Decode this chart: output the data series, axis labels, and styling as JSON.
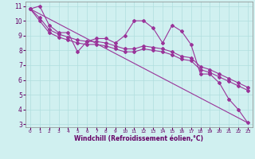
{
  "xlabel": "Windchill (Refroidissement éolien,°C)",
  "bg_color": "#d0f0f0",
  "line_color": "#993399",
  "grid_color": "#b0dede",
  "xlim": [
    -0.5,
    23.5
  ],
  "ylim": [
    2.8,
    11.3
  ],
  "yticks": [
    3,
    4,
    5,
    6,
    7,
    8,
    9,
    10,
    11
  ],
  "xticks": [
    0,
    1,
    2,
    3,
    4,
    5,
    6,
    7,
    8,
    9,
    10,
    11,
    12,
    13,
    14,
    15,
    16,
    17,
    18,
    19,
    20,
    21,
    22,
    23
  ],
  "series": [
    {
      "x": [
        0,
        1,
        2,
        3,
        4,
        5,
        6,
        7,
        8,
        9,
        10,
        11,
        12,
        13,
        14,
        15,
        16,
        17,
        18,
        19,
        20,
        21,
        22,
        23
      ],
      "y": [
        10.8,
        11.0,
        9.7,
        9.2,
        9.2,
        7.9,
        8.6,
        8.8,
        8.8,
        8.5,
        9.0,
        10.0,
        10.0,
        9.5,
        8.5,
        9.7,
        9.3,
        8.4,
        6.4,
        6.4,
        5.8,
        4.7,
        4.0,
        3.1
      ],
      "has_markers": true
    },
    {
      "x": [
        0,
        1,
        2,
        3,
        4,
        5,
        6,
        7,
        8,
        9,
        10,
        11,
        12,
        13,
        14,
        15,
        16,
        17,
        18,
        19,
        20,
        21,
        22,
        23
      ],
      "y": [
        10.8,
        10.2,
        9.4,
        9.1,
        8.9,
        8.7,
        8.6,
        8.6,
        8.5,
        8.3,
        8.1,
        8.1,
        8.3,
        8.2,
        8.1,
        7.9,
        7.6,
        7.5,
        6.9,
        6.7,
        6.4,
        6.1,
        5.8,
        5.5
      ],
      "has_markers": true
    },
    {
      "x": [
        0,
        1,
        2,
        3,
        4,
        5,
        6,
        7,
        8,
        9,
        10,
        11,
        12,
        13,
        14,
        15,
        16,
        17,
        18,
        19,
        20,
        21,
        22,
        23
      ],
      "y": [
        10.8,
        10.0,
        9.2,
        8.9,
        8.7,
        8.5,
        8.4,
        8.4,
        8.3,
        8.1,
        7.9,
        7.9,
        8.1,
        8.0,
        7.9,
        7.7,
        7.4,
        7.3,
        6.7,
        6.5,
        6.2,
        5.9,
        5.6,
        5.3
      ],
      "has_markers": true
    },
    {
      "x": [
        0,
        23
      ],
      "y": [
        10.8,
        3.1
      ],
      "has_markers": false
    }
  ],
  "marker": "D",
  "markersize": 2.0,
  "linewidth": 0.8
}
